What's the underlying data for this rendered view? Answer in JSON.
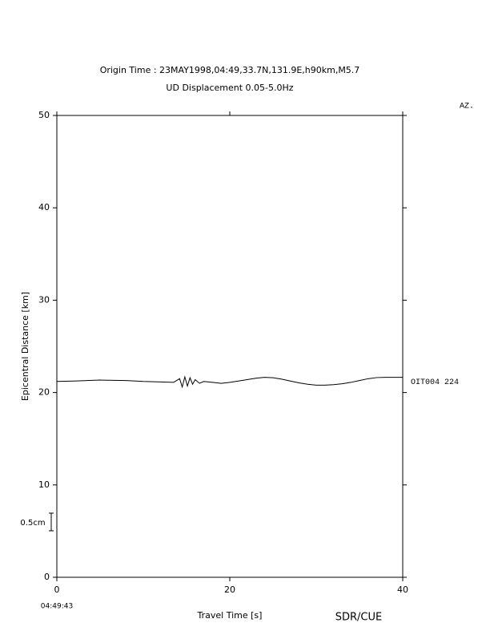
{
  "chart_data": {
    "type": "line",
    "title": "Origin Time : 23MAY1998,04:49,33.7N,131.9E,h90km,M5.7",
    "subtitle": "UD Displacement 0.05-5.0Hz",
    "x_label": "Travel Time [s]",
    "y_label": "Epicentral Distance [km]",
    "right_header": "AZ.",
    "trace_label": "OIT004 224",
    "start_time": "04:49:43",
    "scale_label": "0.5cm",
    "credit": "SDR/CUE",
    "xlim": [
      0,
      40
    ],
    "xticks": [
      0,
      20,
      40
    ],
    "ylim": [
      0,
      50
    ],
    "yticks": [
      0,
      10,
      20,
      30,
      40,
      50
    ],
    "series": [
      {
        "color": "#000000",
        "x": [
          0,
          2,
          5,
          8,
          10,
          12,
          13.5,
          14.2,
          14.5,
          14.8,
          15.1,
          15.4,
          15.7,
          16,
          16.5,
          17,
          18,
          19,
          20,
          21,
          22,
          23,
          24,
          25,
          26,
          27,
          28,
          29,
          30,
          31,
          32,
          33,
          34,
          35,
          36,
          37,
          38,
          40
        ],
        "values": [
          21.2,
          21.25,
          21.35,
          21.3,
          21.2,
          21.15,
          21.1,
          21.5,
          20.6,
          21.7,
          20.7,
          21.6,
          20.9,
          21.4,
          21.0,
          21.2,
          21.1,
          21.0,
          21.1,
          21.25,
          21.4,
          21.55,
          21.65,
          21.6,
          21.45,
          21.25,
          21.05,
          20.9,
          20.8,
          20.8,
          20.85,
          20.95,
          21.1,
          21.3,
          21.5,
          21.62,
          21.65,
          21.65
        ]
      }
    ]
  }
}
